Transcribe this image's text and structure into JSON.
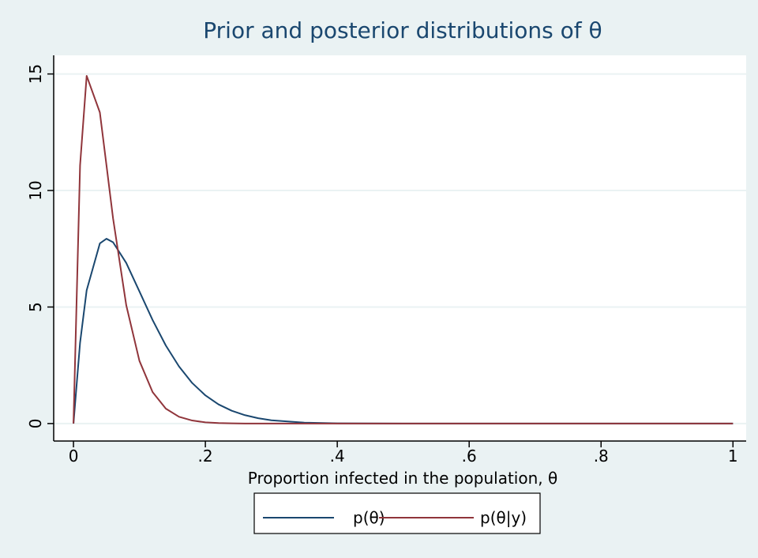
{
  "chart_data": {
    "type": "line",
    "title": "Prior and posterior distributions of θ",
    "x_label": "Proportion infected in the population, θ",
    "x": [
      0,
      0.01,
      0.02,
      0.04,
      0.05,
      0.06,
      0.08,
      0.1,
      0.12,
      0.14,
      0.16,
      0.18,
      0.2,
      0.22,
      0.24,
      0.26,
      0.28,
      0.3,
      0.35,
      0.4,
      0.5,
      0.6,
      0.7,
      0.8,
      0.9,
      1
    ],
    "series": [
      {
        "name": "p(θ)",
        "color": "#1a476f",
        "values": [
          0,
          3.47,
          5.72,
          7.73,
          7.93,
          7.78,
          6.89,
          5.67,
          4.44,
          3.35,
          2.45,
          1.74,
          1.21,
          0.82,
          0.55,
          0.36,
          0.23,
          0.14,
          0.04,
          0.01,
          0,
          0,
          0,
          0,
          0,
          0
        ]
      },
      {
        "name": "p(θ|y)",
        "color": "#90353b",
        "values": [
          0,
          11.08,
          14.92,
          13.35,
          11.09,
          8.81,
          5.08,
          2.69,
          1.35,
          0.64,
          0.29,
          0.13,
          0.05,
          0.02,
          0.01,
          0,
          0,
          0,
          0,
          0,
          0,
          0,
          0,
          0,
          0,
          0
        ]
      }
    ],
    "xlim": [
      -0.03,
      1.02
    ],
    "xticks": [
      0,
      {
        "value": 0.2,
        "label": ".2"
      },
      {
        "value": 0.4,
        "label": ".4"
      },
      {
        "value": 0.6,
        "label": ".6"
      },
      {
        "value": 0.8,
        "label": ".8"
      },
      1
    ],
    "ylim": [
      -0.75,
      15.8
    ],
    "yticks": [
      0,
      5,
      10,
      15
    ],
    "grid": true,
    "legend": "bottom"
  }
}
